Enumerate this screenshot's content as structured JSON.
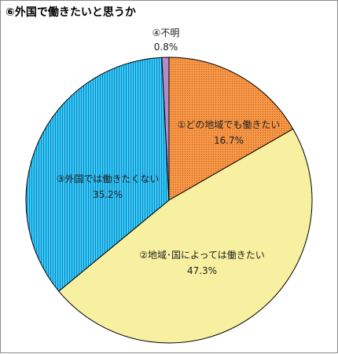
{
  "chart_data": {
    "type": "pie",
    "title": "⑥外国で働きたいと思うか",
    "slices": [
      {
        "label": "①どの地域でも働きたい",
        "value": 16.7,
        "value_label": "16.7%",
        "color": "#f79646",
        "pattern": "dots"
      },
      {
        "label": "②地域･国によっては働きたい",
        "value": 47.3,
        "value_label": "47.3%",
        "color": "#f7f0a0",
        "pattern": "none"
      },
      {
        "label": "③外国では働きたくない",
        "value": 35.2,
        "value_label": "35.2%",
        "color": "#33ccff",
        "pattern": "vertical-lines"
      },
      {
        "label": "④不明",
        "value": 0.8,
        "value_label": "0.8%",
        "color": "#b08cc8",
        "pattern": "none"
      }
    ],
    "start": "top",
    "direction": "clockwise",
    "legend": "none"
  }
}
